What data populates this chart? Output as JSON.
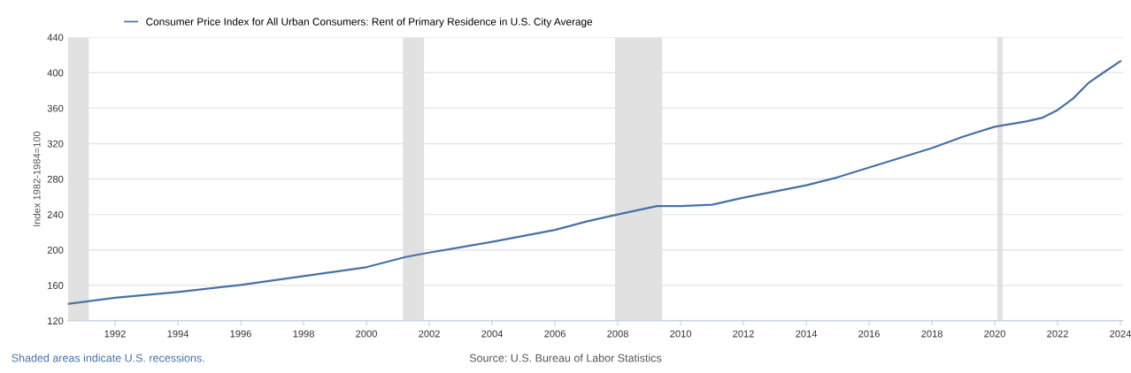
{
  "chart_data": {
    "type": "line",
    "ylabel": "Index 1982-1984=100",
    "x": [
      "1990-07",
      "1992-01",
      "1994-01",
      "1996-01",
      "1998-01",
      "2000-01",
      "2001-04",
      "2002-01",
      "2004-01",
      "2006-01",
      "2007-01",
      "2008-01",
      "2009-04",
      "2010-01",
      "2011-01",
      "2012-01",
      "2013-01",
      "2014-01",
      "2015-01",
      "2016-01",
      "2017-01",
      "2018-01",
      "2019-01",
      "2020-01",
      "2021-01",
      "2021-07",
      "2022-01",
      "2022-07",
      "2023-01",
      "2023-07",
      "2024-01"
    ],
    "series": [
      {
        "name": "Consumer Price Index for All Urban Consumers: Rent of Primary Residence in U.S. City Average",
        "color": "#4572a7",
        "values": [
          139,
          146,
          152.5,
          160.5,
          170.5,
          180.5,
          192,
          197,
          209,
          222.5,
          232,
          240,
          249.5,
          249.5,
          251,
          259,
          266,
          273,
          282,
          293,
          304,
          315,
          328,
          339,
          345,
          349,
          358,
          371,
          389,
          401,
          413
        ]
      }
    ],
    "xlim": [
      "1990-07",
      "2024-02"
    ],
    "xticks": [
      "1992",
      "1994",
      "1996",
      "1998",
      "2000",
      "2002",
      "2004",
      "2006",
      "2008",
      "2010",
      "2012",
      "2014",
      "2016",
      "2018",
      "2020",
      "2022",
      "2024"
    ],
    "ylim": [
      120,
      440
    ],
    "yticks": [
      120,
      160,
      200,
      240,
      280,
      320,
      360,
      400,
      440
    ],
    "bands": [
      {
        "axis": "x",
        "from": "1990-07",
        "to": "1991-03",
        "color": "#e1e1e1"
      },
      {
        "axis": "x",
        "from": "2001-03",
        "to": "2001-11",
        "color": "#e1e1e1"
      },
      {
        "axis": "x",
        "from": "2007-12",
        "to": "2009-06",
        "color": "#e1e1e1"
      },
      {
        "axis": "x",
        "from": "2020-02",
        "to": "2020-04",
        "color": "#e1e1e1"
      }
    ],
    "annotations": [
      "Shaded areas indicate U.S. recessions.",
      "Source: U.S. Bureau of Labor Statistics"
    ],
    "grid": "y",
    "legend": "top left",
    "marker": "none",
    "line_style": "solid"
  }
}
